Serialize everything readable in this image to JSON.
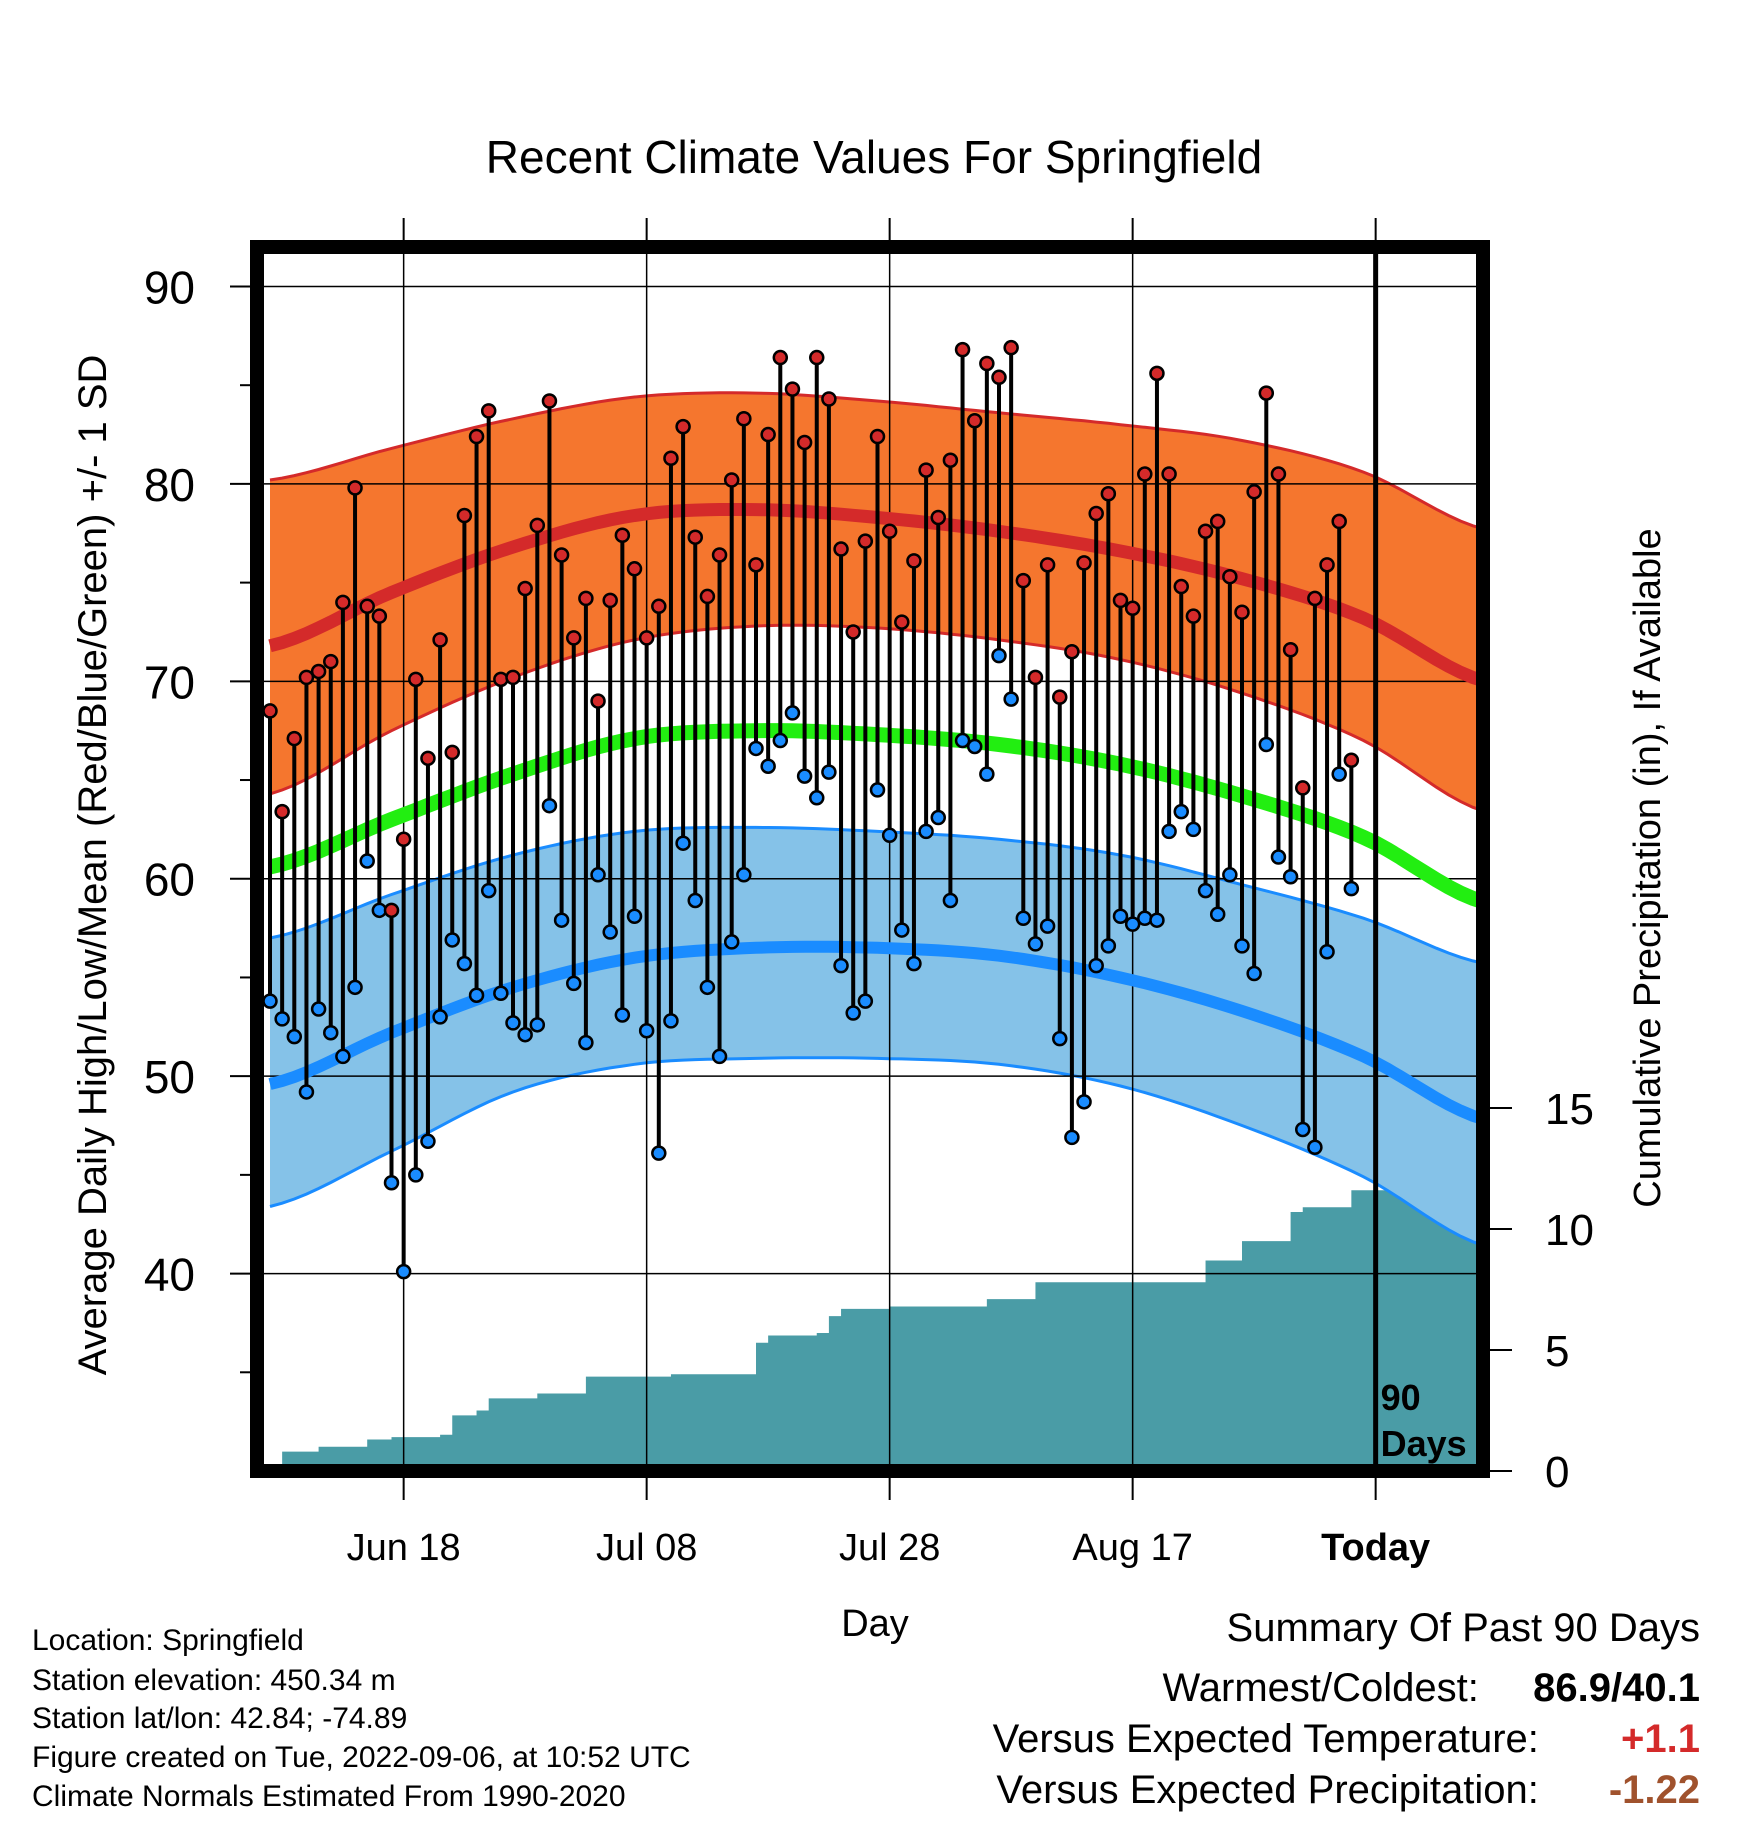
{
  "title": "Recent Climate Values For Springfield",
  "left_axis_label": "Average Daily High/Low/Mean (Red/Blue/Green) +/- 1 SD",
  "right_axis_label": "Cumulative Precipitation (in), If Available",
  "x_axis_label": "Day",
  "marker_label_line1": "90",
  "marker_label_line2": "Days",
  "info": {
    "location": "Location: Springfield",
    "elevation": "Station elevation: 450.34 m",
    "latlon": "Station lat/lon: 42.84; -74.89",
    "created": "Figure created on Tue, 2022-09-06, at 10:52 UTC",
    "normals": "Climate Normals Estimated From 1990-2020"
  },
  "summary": {
    "heading": "Summary Of Past 90 Days",
    "warmest_coldest_label": "Warmest/Coldest:",
    "warmest_coldest_value": "86.9/40.1",
    "temp_label": "Versus Expected Temperature:",
    "temp_value": "+1.1",
    "precip_label": "Versus Expected Precipitation:",
    "precip_value": "-1.22"
  },
  "colors": {
    "high_band": "#f5762e",
    "high_line": "#d42a2a",
    "mean_line": "#22ee11",
    "low_band": "#85c2e8",
    "low_line": "#1a8cff",
    "precip_fill": "#4a9ca6",
    "high_marker": "#d42a2a",
    "low_marker": "#1a8cff",
    "temp_value": "#d42a2a",
    "precip_value": "#a0522d"
  },
  "chart_data": {
    "type": "line",
    "x_start": "Jun 07",
    "x_today_index": 91,
    "x_end_index": 100,
    "x_ticks": [
      {
        "index": 11,
        "label": "Jun 18"
      },
      {
        "index": 31,
        "label": "Jul 08"
      },
      {
        "index": 51,
        "label": "Jul 28"
      },
      {
        "index": 71,
        "label": "Aug 17"
      },
      {
        "index": 91,
        "label": "Today"
      }
    ],
    "ylim": [
      30,
      92
    ],
    "y_ticks": [
      40,
      50,
      60,
      70,
      80,
      90
    ],
    "y2_ticks": [
      0,
      5,
      10,
      15
    ],
    "y2_label_note": "precip axis in inches",
    "normal_high": {
      "x": [
        0,
        10,
        20,
        30,
        40,
        50,
        60,
        70,
        80,
        90,
        100
      ],
      "mean": [
        71.8,
        74.5,
        76.8,
        78.4,
        78.7,
        78.3,
        77.6,
        76.6,
        75.2,
        73.2,
        70.0
      ],
      "upper": [
        80.2,
        81.8,
        83.3,
        84.4,
        84.6,
        84.2,
        83.6,
        83.0,
        82.2,
        80.6,
        77.7
      ],
      "lower": [
        64.3,
        67.5,
        70.2,
        72.1,
        72.8,
        72.7,
        72.1,
        71.1,
        69.4,
        67.0,
        63.4
      ]
    },
    "normal_mean": {
      "x": [
        0,
        10,
        20,
        30,
        40,
        50,
        60,
        70,
        80,
        90,
        100
      ],
      "values": [
        60.6,
        63.0,
        65.3,
        67.1,
        67.5,
        67.3,
        66.8,
        65.8,
        64.2,
        62.1,
        58.8
      ]
    },
    "normal_low": {
      "x": [
        0,
        10,
        20,
        30,
        40,
        50,
        60,
        70,
        80,
        90,
        100
      ],
      "mean": [
        49.6,
        52.2,
        54.5,
        56.0,
        56.5,
        56.5,
        56.1,
        55.0,
        53.3,
        51.0,
        47.8
      ],
      "upper": [
        57.0,
        59.2,
        61.2,
        62.4,
        62.6,
        62.4,
        62.0,
        61.2,
        59.7,
        58.0,
        55.7
      ],
      "lower": [
        43.4,
        46.2,
        49.2,
        50.6,
        50.9,
        50.9,
        50.6,
        49.5,
        47.5,
        44.9,
        41.4
      ]
    },
    "series": [
      {
        "name": "High",
        "x": [
          0,
          1,
          2,
          3,
          4,
          5,
          6,
          7,
          8,
          9,
          10,
          11,
          12,
          13,
          14,
          15,
          16,
          17,
          18,
          19,
          20,
          21,
          22,
          23,
          24,
          25,
          26,
          27,
          28,
          29,
          30,
          31,
          32,
          33,
          34,
          35,
          36,
          37,
          38,
          39,
          40,
          41,
          42,
          43,
          44,
          45,
          46,
          47,
          48,
          49,
          50,
          51,
          52,
          53,
          54,
          55,
          56,
          57,
          58,
          59,
          60,
          61,
          62,
          63,
          64,
          65,
          66,
          67,
          68,
          69,
          70,
          71,
          72,
          73,
          74,
          75,
          76,
          77,
          78,
          79,
          80,
          81,
          82,
          83,
          84,
          85,
          86,
          87,
          88,
          89,
          90
        ],
        "values": [
          68.5,
          63.4,
          67.1,
          70.2,
          70.5,
          71.0,
          74.0,
          79.8,
          73.8,
          73.3,
          58.4,
          62.0,
          70.1,
          66.1,
          72.1,
          66.4,
          78.4,
          82.4,
          83.7,
          70.1,
          70.2,
          74.7,
          77.9,
          84.2,
          76.4,
          72.2,
          74.2,
          69.0,
          74.1,
          77.4,
          75.7,
          72.2,
          73.8,
          81.3,
          82.9,
          77.3,
          74.3,
          76.4,
          80.2,
          83.3,
          75.9,
          82.5,
          86.4,
          84.8,
          82.1,
          86.4,
          84.3,
          76.7,
          72.5,
          77.1,
          82.4,
          77.6,
          73.0,
          76.1,
          80.7,
          78.3,
          81.2,
          86.8,
          83.2,
          86.1,
          85.4,
          86.9,
          75.1,
          70.2,
          75.9,
          69.2,
          71.5,
          76.0,
          78.5,
          79.5,
          74.1,
          73.7,
          80.5,
          85.6,
          80.5,
          74.8,
          73.3,
          77.6,
          78.1,
          75.3,
          73.5,
          79.6,
          84.6,
          80.5,
          71.6,
          64.6,
          74.2,
          75.9,
          78.1,
          66.0,
          null
        ]
      },
      {
        "name": "Low",
        "x": [
          0,
          1,
          2,
          3,
          4,
          5,
          6,
          7,
          8,
          9,
          10,
          11,
          12,
          13,
          14,
          15,
          16,
          17,
          18,
          19,
          20,
          21,
          22,
          23,
          24,
          25,
          26,
          27,
          28,
          29,
          30,
          31,
          32,
          33,
          34,
          35,
          36,
          37,
          38,
          39,
          40,
          41,
          42,
          43,
          44,
          45,
          46,
          47,
          48,
          49,
          50,
          51,
          52,
          53,
          54,
          55,
          56,
          57,
          58,
          59,
          60,
          61,
          62,
          63,
          64,
          65,
          66,
          67,
          68,
          69,
          70,
          71,
          72,
          73,
          74,
          75,
          76,
          77,
          78,
          79,
          80,
          81,
          82,
          83,
          84,
          85,
          86,
          87,
          88,
          89,
          90
        ],
        "values": [
          53.8,
          52.9,
          52.0,
          49.2,
          53.4,
          52.2,
          51.0,
          54.5,
          60.9,
          58.4,
          44.6,
          40.1,
          45.0,
          46.7,
          53.0,
          56.9,
          55.7,
          54.1,
          59.4,
          54.2,
          52.7,
          52.1,
          52.6,
          63.7,
          57.9,
          54.7,
          51.7,
          60.2,
          57.3,
          53.1,
          58.1,
          52.3,
          46.1,
          52.8,
          61.8,
          58.9,
          54.5,
          51.0,
          56.8,
          60.2,
          66.6,
          65.7,
          67.0,
          68.4,
          65.2,
          64.1,
          65.4,
          55.6,
          53.2,
          53.8,
          64.5,
          62.2,
          57.4,
          55.7,
          62.4,
          63.1,
          58.9,
          67.0,
          66.7,
          65.3,
          71.3,
          69.1,
          58.0,
          56.7,
          57.6,
          51.9,
          46.9,
          48.7,
          55.6,
          56.6,
          58.1,
          57.7,
          58.0,
          57.9,
          62.4,
          63.4,
          62.5,
          59.4,
          58.2,
          60.2,
          56.6,
          55.2,
          66.8,
          61.1,
          60.1,
          47.3,
          46.4,
          56.3,
          65.3,
          59.5,
          null
        ]
      },
      {
        "name": "Cumulative Precipitation",
        "x": [
          0,
          1,
          2,
          3,
          4,
          5,
          6,
          7,
          8,
          9,
          10,
          11,
          12,
          13,
          14,
          15,
          16,
          17,
          18,
          19,
          20,
          21,
          22,
          23,
          24,
          25,
          26,
          27,
          28,
          29,
          30,
          31,
          32,
          33,
          34,
          35,
          36,
          37,
          38,
          39,
          40,
          41,
          42,
          43,
          44,
          45,
          46,
          47,
          48,
          49,
          50,
          51,
          52,
          53,
          54,
          55,
          56,
          57,
          58,
          59,
          60,
          61,
          62,
          63,
          64,
          65,
          66,
          67,
          68,
          69,
          70,
          71,
          72,
          73,
          74,
          75,
          76,
          77,
          78,
          79,
          80,
          81,
          82,
          83,
          84,
          85,
          86,
          87,
          88,
          89,
          90,
          91,
          92,
          93,
          94,
          95,
          96,
          97,
          98,
          99,
          100
        ],
        "values": [
          0.0,
          0.8,
          0.8,
          0.8,
          1.0,
          1.0,
          1.0,
          1.0,
          1.3,
          1.3,
          1.4,
          1.4,
          1.4,
          1.4,
          1.5,
          2.3,
          2.3,
          2.5,
          3.0,
          3.0,
          3.0,
          3.0,
          3.2,
          3.2,
          3.2,
          3.2,
          3.9,
          3.9,
          3.9,
          3.9,
          3.9,
          3.9,
          3.9,
          4.0,
          4.0,
          4.0,
          4.0,
          4.0,
          4.0,
          4.0,
          5.3,
          5.6,
          5.6,
          5.6,
          5.6,
          5.7,
          6.4,
          6.7,
          6.7,
          6.7,
          6.7,
          6.8,
          6.8,
          6.8,
          6.8,
          6.8,
          6.8,
          6.8,
          6.8,
          7.1,
          7.1,
          7.1,
          7.1,
          7.8,
          7.8,
          7.8,
          7.8,
          7.8,
          7.8,
          7.8,
          7.8,
          7.8,
          7.8,
          7.8,
          7.8,
          7.8,
          7.8,
          8.7,
          8.7,
          8.7,
          9.5,
          9.5,
          9.5,
          9.5,
          10.7,
          10.9,
          10.9,
          10.9,
          10.9,
          11.6,
          11.6,
          11.6,
          11.6,
          11.6,
          11.6,
          11.6,
          11.6,
          11.6,
          11.6,
          11.6,
          11.6
        ]
      }
    ]
  }
}
